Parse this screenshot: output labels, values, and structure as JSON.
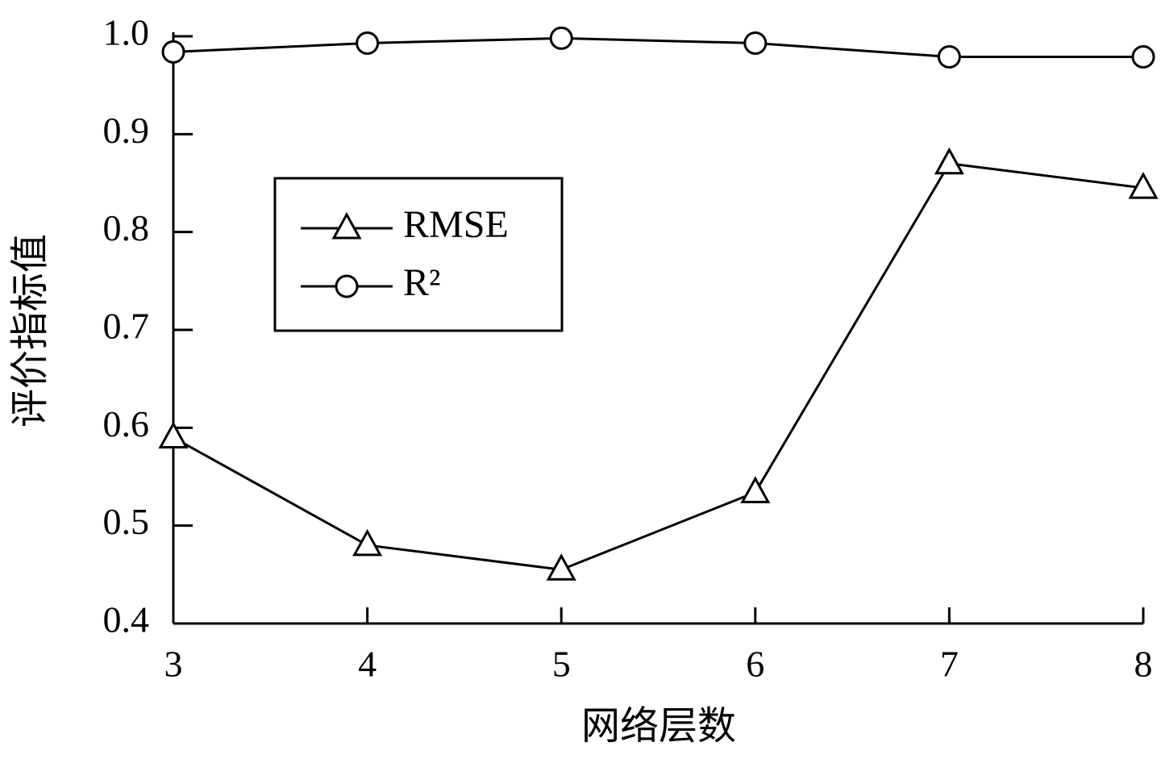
{
  "chart_data": {
    "type": "line",
    "x_label": "网络层数",
    "y_label": "评价指标值",
    "x": [
      3,
      4,
      5,
      6,
      7,
      8
    ],
    "series": [
      {
        "name": "RMSE",
        "color": "#000000",
        "marker": "triangle",
        "values": [
          0.59,
          0.48,
          0.455,
          0.534,
          0.87,
          0.845
        ]
      },
      {
        "name": "R²",
        "color": "#000000",
        "marker": "circle",
        "values": [
          0.984,
          0.993,
          0.998,
          0.993,
          0.979,
          0.979
        ]
      }
    ],
    "xlim": [
      3,
      8
    ],
    "xticks": [
      3,
      4,
      5,
      6,
      7,
      8
    ],
    "ylim": [
      0.4,
      1.0
    ],
    "yticks": [
      0.4,
      0.5,
      0.6,
      0.7,
      0.8,
      0.9,
      {
        "value": 1.0,
        "label": "1.0"
      }
    ],
    "grid": false
  }
}
